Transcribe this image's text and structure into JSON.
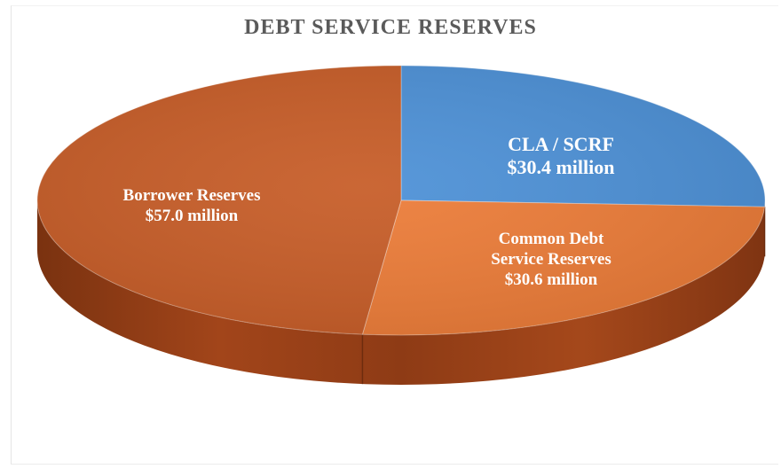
{
  "chart_data": {
    "type": "pie",
    "title": "DEBT SERVICE RESERVES",
    "slices": [
      {
        "label": "CLA / SCRF",
        "value_text": "$30.4 million",
        "value": 30.4,
        "color": "#4a8fd6"
      },
      {
        "label": "Common Debt Service Reserves",
        "value_text": "$30.6 million",
        "value": 30.6,
        "color": "#ec7a35"
      },
      {
        "label": "Borrower Reserves",
        "value_text": "$57.0 million",
        "value": 57.0,
        "color": "#c65a24"
      }
    ],
    "legend": "none",
    "style": "3d"
  }
}
